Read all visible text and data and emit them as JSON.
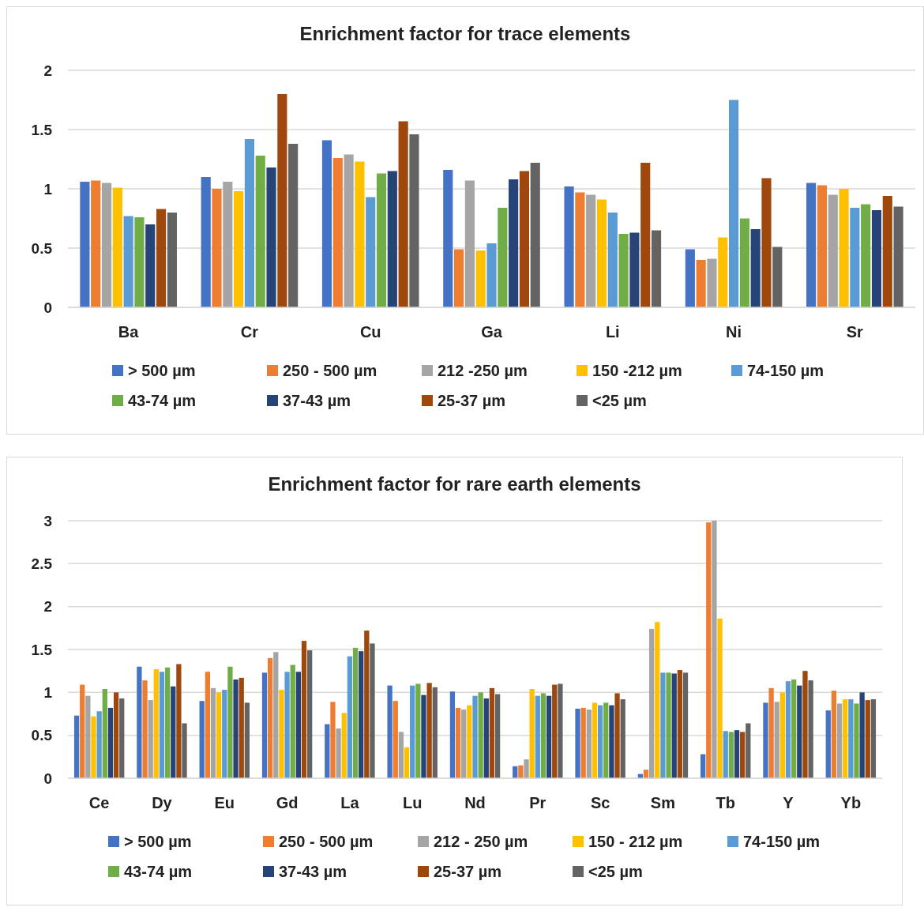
{
  "chart_data": [
    {
      "type": "bar",
      "title": "Enrichment factor for trace elements",
      "categories": [
        "Ba",
        "Cr",
        "Cu",
        "Ga",
        "Li",
        "Ni",
        "Sr"
      ],
      "ylim": [
        0,
        2
      ],
      "yticks": [
        0,
        0.5,
        1,
        1.5,
        2
      ],
      "grid": "y",
      "legend": "bottom",
      "series": [
        {
          "name": "> 500 µm",
          "color": "#4472c4",
          "values": [
            1.06,
            1.1,
            1.41,
            1.16,
            1.02,
            0.49,
            1.05
          ]
        },
        {
          "name": "250 - 500 µm",
          "color": "#ed7d31",
          "values": [
            1.07,
            1.0,
            1.26,
            0.49,
            0.97,
            0.4,
            1.03
          ]
        },
        {
          "name": "212 -250 µm",
          "color": "#a5a5a5",
          "values": [
            1.05,
            1.06,
            1.29,
            1.07,
            0.95,
            0.41,
            0.95
          ]
        },
        {
          "name": "150 -212 µm",
          "color": "#ffc000",
          "values": [
            1.01,
            0.98,
            1.23,
            0.48,
            0.91,
            0.59,
            1.0
          ]
        },
        {
          "name": "74-150 µm",
          "color": "#5b9bd5",
          "values": [
            0.77,
            1.42,
            0.93,
            0.54,
            0.8,
            1.75,
            0.84
          ]
        },
        {
          "name": "43-74 µm",
          "color": "#70ad47",
          "values": [
            0.76,
            1.28,
            1.13,
            0.84,
            0.62,
            0.75,
            0.87
          ]
        },
        {
          "name": "37-43 µm",
          "color": "#264478",
          "values": [
            0.7,
            1.18,
            1.15,
            1.08,
            0.63,
            0.66,
            0.82
          ]
        },
        {
          "name": "25-37 µm",
          "color": "#9e480e",
          "values": [
            0.83,
            1.8,
            1.57,
            1.15,
            1.22,
            1.09,
            0.94
          ]
        },
        {
          "name": "<25 µm",
          "color": "#636363",
          "values": [
            0.8,
            1.38,
            1.46,
            1.22,
            0.65,
            0.51,
            0.85
          ]
        }
      ]
    },
    {
      "type": "bar",
      "title": "Enrichment factor for rare earth elements",
      "categories": [
        "Ce",
        "Dy",
        "Eu",
        "Gd",
        "La",
        "Lu",
        "Nd",
        "Pr",
        "Sc",
        "Sm",
        "Tb",
        "Y",
        "Yb"
      ],
      "ylim": [
        0,
        3
      ],
      "yticks": [
        0,
        0.5,
        1,
        1.5,
        2,
        2.5,
        3
      ],
      "grid": "y",
      "legend": "bottom",
      "series": [
        {
          "name": "> 500 µm",
          "color": "#4472c4",
          "values": [
            0.73,
            1.3,
            0.9,
            1.23,
            0.63,
            1.08,
            1.01,
            0.14,
            0.81,
            0.05,
            0.28,
            0.88,
            0.79
          ]
        },
        {
          "name": "250 - 500 µm",
          "color": "#ed7d31",
          "values": [
            1.09,
            1.14,
            1.24,
            1.4,
            0.89,
            0.9,
            0.82,
            0.15,
            0.82,
            0.1,
            2.98,
            1.05,
            1.02
          ]
        },
        {
          "name": "212 - 250 µm",
          "color": "#a5a5a5",
          "values": [
            0.96,
            0.91,
            1.05,
            1.47,
            0.58,
            0.54,
            0.8,
            0.22,
            0.8,
            1.74,
            3.0,
            0.89,
            0.87
          ]
        },
        {
          "name": "150 - 212 µm",
          "color": "#ffc000",
          "values": [
            0.72,
            1.27,
            1.0,
            1.03,
            0.76,
            0.36,
            0.85,
            1.04,
            0.88,
            1.82,
            1.86,
            1.0,
            0.92
          ]
        },
        {
          "name": "74-150 µm",
          "color": "#5b9bd5",
          "values": [
            0.78,
            1.24,
            1.03,
            1.24,
            1.42,
            1.08,
            0.96,
            0.96,
            0.85,
            1.23,
            0.55,
            1.13,
            0.92
          ]
        },
        {
          "name": "43-74 µm",
          "color": "#70ad47",
          "values": [
            1.04,
            1.29,
            1.3,
            1.32,
            1.52,
            1.1,
            1.0,
            0.99,
            0.88,
            1.23,
            0.54,
            1.15,
            0.87
          ]
        },
        {
          "name": "37-43 µm",
          "color": "#264478",
          "values": [
            0.82,
            1.07,
            1.15,
            1.24,
            1.48,
            0.97,
            0.93,
            0.96,
            0.85,
            1.22,
            0.56,
            1.08,
            1.0
          ]
        },
        {
          "name": "25-37 µm",
          "color": "#9e480e",
          "values": [
            1.0,
            1.33,
            1.17,
            1.6,
            1.72,
            1.11,
            1.05,
            1.09,
            0.99,
            1.26,
            0.54,
            1.25,
            0.91
          ]
        },
        {
          "name": "<25 µm",
          "color": "#636363",
          "values": [
            0.93,
            0.64,
            0.88,
            1.49,
            1.57,
            1.06,
            0.98,
            1.1,
            0.92,
            1.23,
            0.64,
            1.14,
            0.92
          ]
        }
      ]
    }
  ]
}
